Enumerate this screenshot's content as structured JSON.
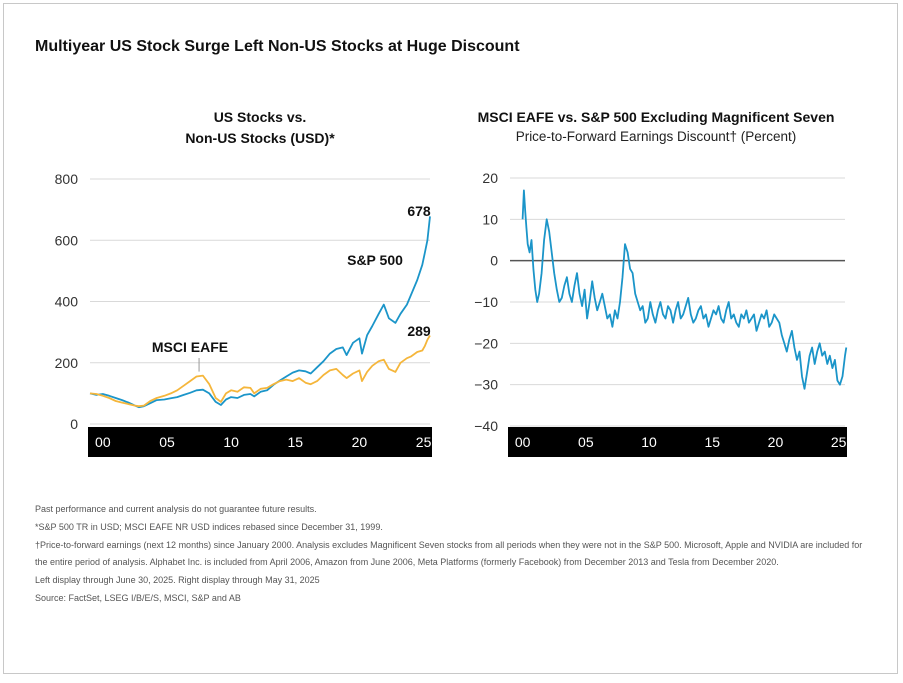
{
  "main_title": "Multiyear US Stock Surge Left Non-US Stocks at Huge Discount",
  "colors": {
    "sp500": "#1b95c9",
    "eafe": "#f5b63b",
    "axis_bar": "#000000",
    "zero_line": "#555555"
  },
  "chart_data": [
    {
      "type": "line",
      "title_lines": [
        "US Stocks vs.",
        "Non-US Stocks (USD)*"
      ],
      "xlabel": "",
      "ylabel": "",
      "ylim": [
        0,
        800
      ],
      "yticks": [
        "800",
        "600",
        "400",
        "200",
        "0"
      ],
      "ytick_values": [
        800,
        600,
        400,
        200,
        0
      ],
      "xlim": [
        1999,
        2025.5
      ],
      "xticks": [
        "00",
        "05",
        "10",
        "15",
        "20",
        "25"
      ],
      "xtick_values": [
        2000,
        2005,
        2010,
        2015,
        2020,
        2025
      ],
      "series": [
        {
          "name": "S&P 500",
          "color": "#1b95c9",
          "end_label": "678",
          "x": [
            1999.0,
            1999.5,
            2000.0,
            2000.5,
            2001.0,
            2001.5,
            2002.0,
            2002.5,
            2002.8,
            2003.2,
            2003.7,
            2004.2,
            2004.8,
            2005.3,
            2005.8,
            2006.3,
            2006.8,
            2007.3,
            2007.8,
            2008.3,
            2008.8,
            2009.2,
            2009.6,
            2010.0,
            2010.5,
            2011.0,
            2011.5,
            2011.8,
            2012.3,
            2012.8,
            2013.3,
            2013.8,
            2014.3,
            2014.8,
            2015.3,
            2015.8,
            2016.2,
            2016.7,
            2017.2,
            2017.7,
            2018.2,
            2018.7,
            2019.0,
            2019.5,
            2020.0,
            2020.2,
            2020.6,
            2021.0,
            2021.5,
            2021.9,
            2022.3,
            2022.8,
            2023.2,
            2023.7,
            2024.0,
            2024.5,
            2024.9,
            2025.1,
            2025.3,
            2025.5
          ],
          "values": [
            100,
            95,
            98,
            92,
            85,
            78,
            70,
            60,
            55,
            58,
            68,
            78,
            80,
            84,
            88,
            95,
            102,
            110,
            112,
            100,
            72,
            62,
            80,
            88,
            85,
            95,
            98,
            90,
            105,
            110,
            128,
            142,
            155,
            168,
            175,
            172,
            165,
            185,
            205,
            230,
            245,
            250,
            225,
            265,
            280,
            230,
            290,
            320,
            360,
            390,
            345,
            330,
            360,
            390,
            420,
            470,
            520,
            560,
            600,
            678
          ]
        },
        {
          "name": "MSCI EAFE",
          "color": "#f5b63b",
          "end_label": "289",
          "x": [
            1999.0,
            1999.5,
            2000.0,
            2000.5,
            2001.0,
            2001.5,
            2002.0,
            2002.5,
            2002.8,
            2003.2,
            2003.7,
            2004.2,
            2004.8,
            2005.3,
            2005.8,
            2006.3,
            2006.8,
            2007.3,
            2007.8,
            2008.3,
            2008.8,
            2009.2,
            2009.6,
            2010.0,
            2010.5,
            2011.0,
            2011.5,
            2011.8,
            2012.3,
            2012.8,
            2013.3,
            2013.8,
            2014.3,
            2014.8,
            2015.3,
            2015.8,
            2016.2,
            2016.7,
            2017.2,
            2017.7,
            2018.2,
            2018.7,
            2019.0,
            2019.5,
            2020.0,
            2020.2,
            2020.6,
            2021.0,
            2021.5,
            2021.9,
            2022.3,
            2022.8,
            2023.2,
            2023.7,
            2024.0,
            2024.5,
            2024.9,
            2025.1,
            2025.3,
            2025.5
          ],
          "values": [
            100,
            98,
            92,
            85,
            75,
            70,
            65,
            60,
            58,
            60,
            75,
            85,
            92,
            100,
            110,
            125,
            140,
            155,
            158,
            130,
            85,
            72,
            100,
            110,
            105,
            120,
            118,
            100,
            115,
            118,
            130,
            140,
            145,
            140,
            150,
            135,
            130,
            140,
            160,
            175,
            180,
            160,
            150,
            165,
            175,
            140,
            170,
            190,
            205,
            210,
            180,
            170,
            200,
            215,
            220,
            235,
            240,
            255,
            275,
            289
          ]
        }
      ]
    },
    {
      "type": "line",
      "title": "MSCI EAFE vs. S&P 500 Excluding Magnificent Seven",
      "subtitle": "Price-to-Forward Earnings Discount† (Percent)",
      "xlabel": "",
      "ylabel": "",
      "ylim": [
        -40,
        20
      ],
      "yticks": [
        "20",
        "10",
        "0",
        "−10",
        "−20",
        "−30",
        "−40"
      ],
      "ytick_values": [
        20,
        10,
        0,
        -10,
        -20,
        -30,
        -40
      ],
      "xlim": [
        1999,
        2025.5
      ],
      "xticks": [
        "00",
        "05",
        "10",
        "15",
        "20",
        "25"
      ],
      "xtick_values": [
        2000,
        2005,
        2010,
        2015,
        2020,
        2025
      ],
      "reference_line": 0,
      "series": [
        {
          "name": "Discount",
          "color": "#1b95c9",
          "x": [
            2000.0,
            2000.1,
            2000.2,
            2000.3,
            2000.4,
            2000.55,
            2000.7,
            2000.85,
            2001.0,
            2001.15,
            2001.3,
            2001.5,
            2001.7,
            2001.9,
            2002.1,
            2002.3,
            2002.5,
            2002.7,
            2002.9,
            2003.1,
            2003.3,
            2003.5,
            2003.7,
            2003.9,
            2004.1,
            2004.3,
            2004.5,
            2004.7,
            2004.9,
            2005.1,
            2005.3,
            2005.5,
            2005.7,
            2005.9,
            2006.1,
            2006.3,
            2006.5,
            2006.7,
            2006.9,
            2007.1,
            2007.3,
            2007.5,
            2007.7,
            2007.9,
            2008.1,
            2008.3,
            2008.5,
            2008.7,
            2008.9,
            2009.1,
            2009.3,
            2009.5,
            2009.7,
            2009.9,
            2010.1,
            2010.3,
            2010.5,
            2010.7,
            2010.9,
            2011.1,
            2011.3,
            2011.5,
            2011.7,
            2011.9,
            2012.1,
            2012.3,
            2012.5,
            2012.7,
            2012.9,
            2013.1,
            2013.3,
            2013.5,
            2013.7,
            2013.9,
            2014.1,
            2014.3,
            2014.5,
            2014.7,
            2014.9,
            2015.1,
            2015.3,
            2015.5,
            2015.7,
            2015.9,
            2016.1,
            2016.3,
            2016.5,
            2016.7,
            2016.9,
            2017.1,
            2017.3,
            2017.5,
            2017.7,
            2017.9,
            2018.1,
            2018.3,
            2018.5,
            2018.7,
            2018.9,
            2019.1,
            2019.3,
            2019.5,
            2019.7,
            2019.9,
            2020.1,
            2020.3,
            2020.5,
            2020.7,
            2020.9,
            2021.1,
            2021.3,
            2021.5,
            2021.7,
            2021.9,
            2022.1,
            2022.3,
            2022.5,
            2022.7,
            2022.9,
            2023.1,
            2023.3,
            2023.5,
            2023.7,
            2023.9,
            2024.1,
            2024.3,
            2024.5,
            2024.7,
            2024.9,
            2025.1,
            2025.3,
            2025.5,
            2025.6
          ],
          "values": [
            10,
            17,
            12,
            8,
            4,
            2,
            5,
            -2,
            -7,
            -10,
            -8,
            -3,
            5,
            10,
            7,
            2,
            -3,
            -7,
            -10,
            -9,
            -6,
            -4,
            -8,
            -10,
            -6,
            -3,
            -8,
            -11,
            -7,
            -14,
            -10,
            -5,
            -9,
            -12,
            -10,
            -8,
            -11,
            -14,
            -13,
            -16,
            -12,
            -14,
            -10,
            -4,
            4,
            2,
            -2,
            -3,
            -8,
            -10,
            -12,
            -11,
            -15,
            -14,
            -10,
            -13,
            -15,
            -12,
            -10,
            -13,
            -14,
            -11,
            -12,
            -15,
            -12,
            -10,
            -14,
            -13,
            -11,
            -9,
            -13,
            -15,
            -14,
            -12,
            -11,
            -14,
            -13,
            -16,
            -14,
            -12,
            -13,
            -11,
            -14,
            -15,
            -12,
            -10,
            -14,
            -13,
            -15,
            -16,
            -13,
            -14,
            -12,
            -15,
            -14,
            -13,
            -17,
            -15,
            -13,
            -14,
            -12,
            -16,
            -15,
            -13,
            -14,
            -15,
            -18,
            -20,
            -22,
            -19,
            -17,
            -21,
            -24,
            -22,
            -28,
            -31,
            -27,
            -23,
            -21,
            -25,
            -22,
            -20,
            -23,
            -22,
            -25,
            -23,
            -26,
            -24,
            -29,
            -30,
            -28,
            -23,
            -21
          ]
        }
      ]
    }
  ],
  "footnotes": [
    "Past performance and current analysis do not guarantee future results.",
    "*S&P 500 TR in USD; MSCI EAFE NR USD indices rebased since December 31, 1999.",
    "†Price-to-forward earnings (next 12 months) since January 2000. Analysis excludes Magnificent Seven stocks from all periods when they were not in the S&P 500. Microsoft, Apple and NVIDIA are included for the entire period of analysis. Alphabet Inc. is included from April 2006, Amazon from June 2006, Meta Platforms (formerly Facebook) from December 2013 and Tesla from December 2020.",
    "Left display through June 30, 2025. Right display through May 31, 2025",
    "Source: FactSet, LSEG I/B/E/S, MSCI, S&P and AB"
  ]
}
